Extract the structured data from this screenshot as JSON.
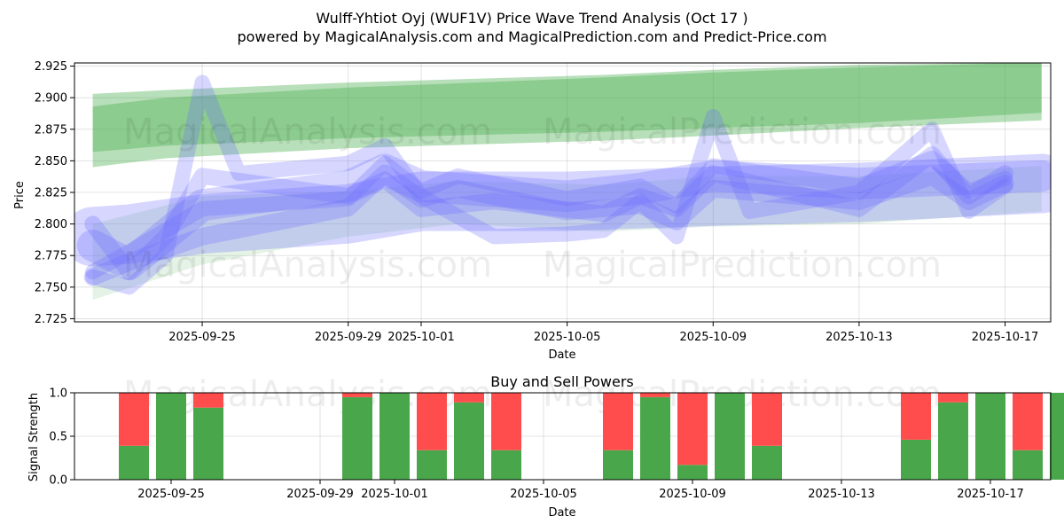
{
  "title_line1": "Wulff-Yhtiot Oyj (WUF1V) Price Wave Trend Analysis (Oct 17 )",
  "title_line2": "powered by MagicalAnalysis.com and MagicalPrediction.com and Predict-Price.com",
  "watermarks": [
    "MagicalAnalysis.com",
    "MagicalPrediction.com"
  ],
  "colors": {
    "buy": "#4aa64a",
    "sell": "#ff4d4d",
    "wave_blue": "#6b6bff",
    "band_green": "#4caf50"
  },
  "chart_data": [
    {
      "type": "area",
      "title": "",
      "xlabel": "Date",
      "ylabel": "Price",
      "xlim": [
        "2025-09-21T12:00",
        "2025-10-18T06:00"
      ],
      "ylim": [
        2.7225,
        2.9275
      ],
      "y_ticks": [
        "2.725",
        "2.750",
        "2.775",
        "2.800",
        "2.825",
        "2.850",
        "2.875",
        "2.900",
        "2.925"
      ],
      "x_ticks": [
        "2025-09-25",
        "2025-09-29",
        "2025-10-01",
        "2025-10-05",
        "2025-10-09",
        "2025-10-13",
        "2025-10-17"
      ],
      "grid": true,
      "green_bands": [
        {
          "upper": [
            [
              "2025-09-22",
              2.903
            ],
            [
              "2025-09-24",
              2.906
            ],
            [
              "2025-09-29",
              2.912
            ],
            [
              "2025-10-06",
              2.918
            ],
            [
              "2025-10-09",
              2.922
            ],
            [
              "2025-10-13",
              2.926
            ],
            [
              "2025-10-18",
              2.928
            ]
          ],
          "lower": [
            [
              "2025-09-22",
              2.845
            ],
            [
              "2025-09-24",
              2.852
            ],
            [
              "2025-09-29",
              2.86
            ],
            [
              "2025-10-06",
              2.866
            ],
            [
              "2025-10-09",
              2.87
            ],
            [
              "2025-10-13",
              2.876
            ],
            [
              "2025-10-18",
              2.882
            ]
          ]
        },
        {
          "upper": [
            [
              "2025-09-22",
              2.893
            ],
            [
              "2025-09-24",
              2.9
            ],
            [
              "2025-09-29",
              2.908
            ],
            [
              "2025-10-06",
              2.916
            ],
            [
              "2025-10-09",
              2.92
            ],
            [
              "2025-10-13",
              2.924
            ],
            [
              "2025-10-18",
              2.928
            ]
          ],
          "lower": [
            [
              "2025-09-22",
              2.857
            ],
            [
              "2025-09-24",
              2.862
            ],
            [
              "2025-09-29",
              2.868
            ],
            [
              "2025-10-06",
              2.873
            ],
            [
              "2025-10-09",
              2.876
            ],
            [
              "2025-10-13",
              2.88
            ],
            [
              "2025-10-18",
              2.888
            ]
          ]
        },
        {
          "upper": [
            [
              "2025-09-22",
              2.8
            ],
            [
              "2025-09-25",
              2.822
            ],
            [
              "2025-09-29",
              2.826
            ],
            [
              "2025-10-02",
              2.834
            ],
            [
              "2025-10-06",
              2.831
            ],
            [
              "2025-10-09",
              2.838
            ],
            [
              "2025-10-13",
              2.838
            ],
            [
              "2025-10-18",
              2.846
            ]
          ],
          "lower": [
            [
              "2025-09-22",
              2.74
            ],
            [
              "2025-09-25",
              2.768
            ],
            [
              "2025-09-29",
              2.79
            ],
            [
              "2025-10-02",
              2.8
            ],
            [
              "2025-10-06",
              2.794
            ],
            [
              "2025-10-09",
              2.798
            ],
            [
              "2025-10-13",
              2.8
            ],
            [
              "2025-10-18",
              2.81
            ]
          ]
        }
      ],
      "blue_bands": [
        {
          "center": [
            [
              "2025-09-22",
              2.79
            ],
            [
              "2025-09-23",
              2.792
            ],
            [
              "2025-09-25",
              2.8
            ],
            [
              "2025-09-29",
              2.808
            ],
            [
              "2025-10-01",
              2.818
            ],
            [
              "2025-10-05",
              2.818
            ],
            [
              "2025-10-09",
              2.822
            ],
            [
              "2025-10-13",
              2.825
            ],
            [
              "2025-10-18",
              2.832
            ]
          ],
          "width": 0.047
        },
        {
          "center": [
            [
              "2025-09-22",
              2.783
            ],
            [
              "2025-09-23",
              2.768
            ],
            [
              "2025-09-25",
              2.815
            ],
            [
              "2025-09-29",
              2.83
            ],
            [
              "2025-09-30",
              2.843
            ],
            [
              "2025-10-01",
              2.83
            ],
            [
              "2025-10-05",
              2.822
            ],
            [
              "2025-10-07",
              2.828
            ],
            [
              "2025-10-09",
              2.838
            ],
            [
              "2025-10-13",
              2.832
            ],
            [
              "2025-10-18",
              2.838
            ]
          ],
          "width": 0.025
        },
        {
          "center": [
            [
              "2025-09-22",
              2.758
            ],
            [
              "2025-09-23",
              2.77
            ],
            [
              "2025-09-25",
              2.79
            ],
            [
              "2025-09-29",
              2.813
            ],
            [
              "2025-09-30",
              2.84
            ],
            [
              "2025-10-01",
              2.82
            ],
            [
              "2025-10-02",
              2.828
            ],
            [
              "2025-10-05",
              2.81
            ],
            [
              "2025-10-07",
              2.815
            ],
            [
              "2025-10-08",
              2.802
            ],
            [
              "2025-10-09",
              2.828
            ],
            [
              "2025-10-13",
              2.818
            ],
            [
              "2025-10-15",
              2.838
            ],
            [
              "2025-10-16",
              2.818
            ],
            [
              "2025-10-17",
              2.832
            ]
          ],
          "width": 0.014
        },
        {
          "center": [
            [
              "2025-09-22",
              2.758
            ],
            [
              "2025-09-23",
              2.75
            ],
            [
              "2025-09-24",
              2.775
            ],
            [
              "2025-09-25",
              2.912
            ],
            [
              "2025-09-26",
              2.84
            ],
            [
              "2025-09-29",
              2.848
            ],
            [
              "2025-09-30",
              2.862
            ],
            [
              "2025-10-01",
              2.822
            ],
            [
              "2025-10-03",
              2.79
            ],
            [
              "2025-10-05",
              2.792
            ],
            [
              "2025-10-06",
              2.795
            ],
            [
              "2025-10-07",
              2.818
            ],
            [
              "2025-10-08",
              2.79
            ],
            [
              "2025-10-09",
              2.885
            ],
            [
              "2025-10-10",
              2.81
            ],
            [
              "2025-10-13",
              2.825
            ],
            [
              "2025-10-15",
              2.875
            ],
            [
              "2025-10-16",
              2.81
            ],
            [
              "2025-10-17",
              2.83
            ]
          ],
          "width": 0.012
        },
        {
          "center": [
            [
              "2025-09-22",
              2.8
            ],
            [
              "2025-09-23",
              2.762
            ],
            [
              "2025-09-24",
              2.79
            ],
            [
              "2025-09-25",
              2.838
            ],
            [
              "2025-09-29",
              2.822
            ],
            [
              "2025-09-30",
              2.835
            ],
            [
              "2025-10-01",
              2.812
            ],
            [
              "2025-10-03",
              2.818
            ],
            [
              "2025-10-06",
              2.808
            ],
            [
              "2025-10-07",
              2.822
            ],
            [
              "2025-10-08",
              2.812
            ],
            [
              "2025-10-09",
              2.84
            ],
            [
              "2025-10-13",
              2.812
            ],
            [
              "2025-10-15",
              2.855
            ],
            [
              "2025-10-16",
              2.822
            ],
            [
              "2025-10-17",
              2.84
            ]
          ],
          "width": 0.013
        },
        {
          "center": [
            [
              "2025-09-22",
              2.762
            ],
            [
              "2025-09-23",
              2.778
            ],
            [
              "2025-09-25",
              2.812
            ],
            [
              "2025-09-29",
              2.82
            ],
            [
              "2025-09-30",
              2.848
            ],
            [
              "2025-10-01",
              2.826
            ],
            [
              "2025-10-02",
              2.838
            ],
            [
              "2025-10-05",
              2.82
            ],
            [
              "2025-10-07",
              2.83
            ],
            [
              "2025-10-08",
              2.814
            ],
            [
              "2025-10-09",
              2.846
            ],
            [
              "2025-10-13",
              2.83
            ],
            [
              "2025-10-15",
              2.852
            ],
            [
              "2025-10-16",
              2.826
            ],
            [
              "2025-10-17",
              2.836
            ]
          ],
          "width": 0.012
        }
      ]
    },
    {
      "type": "bar",
      "title": "Buy and Sell Powers",
      "xlabel": "Date",
      "ylabel": "Signal Strength",
      "ylim": [
        0,
        1
      ],
      "y_ticks": [
        "0.0",
        "0.5",
        "1.0"
      ],
      "x_ticks": [
        "2025-09-25",
        "2025-09-29",
        "2025-10-01",
        "2025-10-05",
        "2025-10-09",
        "2025-10-13",
        "2025-10-17"
      ],
      "grid": true,
      "categories": [
        "2025-09-24",
        "2025-09-25",
        "2025-09-26",
        "2025-09-30",
        "2025-10-01",
        "2025-10-02",
        "2025-10-03",
        "2025-10-04",
        "2025-10-07",
        "2025-10-08",
        "2025-10-09",
        "2025-10-10",
        "2025-10-11",
        "2025-10-15",
        "2025-10-16",
        "2025-10-17",
        "2025-10-18",
        "2025-10-19"
      ],
      "series": [
        {
          "name": "buy",
          "values": [
            0.39,
            1.0,
            0.83,
            0.95,
            1.0,
            0.34,
            0.89,
            0.34,
            0.34,
            0.95,
            0.17,
            1.0,
            0.39,
            0.46,
            0.89,
            1.0,
            0.34,
            1.0
          ]
        },
        {
          "name": "sell",
          "values": [
            0.61,
            0.0,
            0.17,
            0.05,
            0.0,
            0.66,
            0.11,
            0.66,
            0.66,
            0.05,
            0.83,
            0.0,
            0.61,
            0.54,
            0.11,
            0.0,
            0.66,
            0.0
          ]
        }
      ]
    }
  ]
}
